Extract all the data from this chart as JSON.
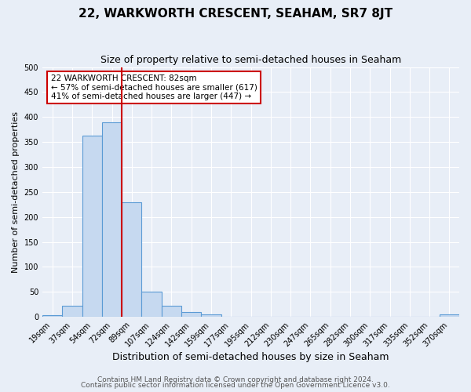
{
  "title": "22, WARKWORTH CRESCENT, SEAHAM, SR7 8JT",
  "subtitle": "Size of property relative to semi-detached houses in Seaham",
  "xlabel": "Distribution of semi-detached houses by size in Seaham",
  "ylabel": "Number of semi-detached properties",
  "bin_labels": [
    "19sqm",
    "37sqm",
    "54sqm",
    "72sqm",
    "89sqm",
    "107sqm",
    "124sqm",
    "142sqm",
    "159sqm",
    "177sqm",
    "195sqm",
    "212sqm",
    "230sqm",
    "247sqm",
    "265sqm",
    "282sqm",
    "300sqm",
    "317sqm",
    "335sqm",
    "352sqm",
    "370sqm"
  ],
  "bar_heights": [
    3,
    23,
    363,
    390,
    230,
    50,
    22,
    10,
    5,
    0,
    0,
    0,
    0,
    0,
    0,
    0,
    0,
    0,
    0,
    0,
    5
  ],
  "bar_color": "#c6d9f0",
  "bar_edge_color": "#5b9bd5",
  "property_value_idx": 4,
  "property_line_color": "#cc0000",
  "annotation_text_line1": "22 WARKWORTH CRESCENT: 82sqm",
  "annotation_text_line2": "← 57% of semi-detached houses are smaller (617)",
  "annotation_text_line3": "41% of semi-detached houses are larger (447) →",
  "annotation_box_color": "#ffffff",
  "annotation_box_edge": "#cc0000",
  "ylim": [
    0,
    500
  ],
  "yticks": [
    0,
    50,
    100,
    150,
    200,
    250,
    300,
    350,
    400,
    450,
    500
  ],
  "footer_line1": "Contains HM Land Registry data © Crown copyright and database right 2024.",
  "footer_line2": "Contains public sector information licensed under the Open Government Licence v3.0.",
  "background_color": "#e8eef7",
  "plot_bg_color": "#e8eef7",
  "grid_color": "#ffffff",
  "title_fontsize": 11,
  "subtitle_fontsize": 9,
  "xlabel_fontsize": 9,
  "ylabel_fontsize": 8,
  "footer_fontsize": 6.5,
  "tick_fontsize": 7
}
